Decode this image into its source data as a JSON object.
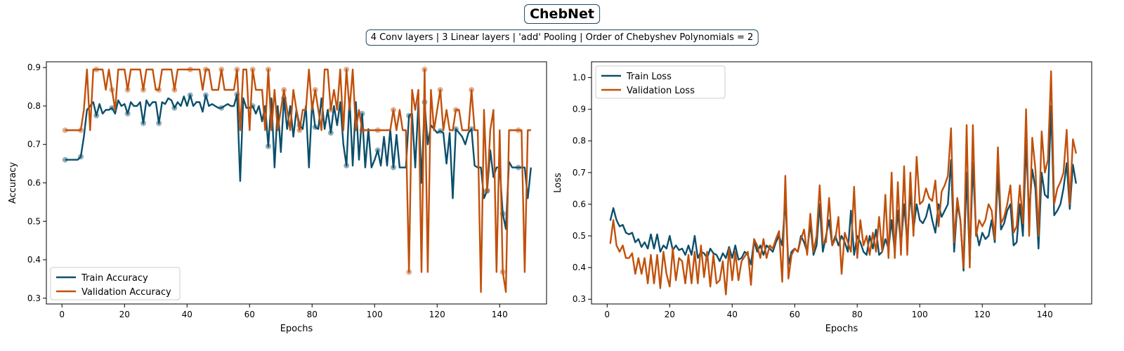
{
  "figure": {
    "title": "ChebNet",
    "subtitle": "4 Conv layers | 3 Linear layers | 'add' Pooling | Order of Chebyshev Polynomials = 2"
  },
  "colors": {
    "train": "#0b4f6c",
    "validation": "#c1500a"
  },
  "chart_data": [
    {
      "type": "line",
      "xlabel": "Epochs",
      "ylabel": "Accuracy",
      "xlim": [
        -5,
        155
      ],
      "ylim": [
        0.285,
        0.915
      ],
      "xticks": [
        0,
        20,
        40,
        60,
        80,
        100,
        120,
        140
      ],
      "yticks": [
        0.3,
        0.4,
        0.5,
        0.6,
        0.7,
        0.8,
        0.9
      ],
      "grid": false,
      "legend_position": "lower-left",
      "markers_every": 5,
      "series": [
        {
          "name": "Train Accuracy",
          "color": "train",
          "x_start": 1,
          "x_step": 1,
          "values": [
            0.66,
            0.66,
            0.66,
            0.66,
            0.66,
            0.668,
            0.72,
            0.79,
            0.8,
            0.81,
            0.775,
            0.805,
            0.78,
            0.79,
            0.79,
            0.795,
            0.78,
            0.815,
            0.8,
            0.805,
            0.78,
            0.81,
            0.8,
            0.8,
            0.81,
            0.755,
            0.815,
            0.8,
            0.81,
            0.81,
            0.755,
            0.81,
            0.805,
            0.82,
            0.815,
            0.795,
            0.81,
            0.8,
            0.825,
            0.8,
            0.828,
            0.8,
            0.81,
            0.81,
            0.785,
            0.828,
            0.8,
            0.805,
            0.8,
            0.795,
            0.795,
            0.8,
            0.805,
            0.8,
            0.8,
            0.83,
            0.605,
            0.82,
            0.795,
            0.795,
            0.8,
            0.78,
            0.8,
            0.76,
            0.8,
            0.695,
            0.82,
            0.64,
            0.8,
            0.68,
            0.82,
            0.74,
            0.8,
            0.72,
            0.79,
            0.75,
            0.74,
            0.8,
            0.64,
            0.81,
            0.745,
            0.74,
            0.82,
            0.74,
            0.79,
            0.73,
            0.8,
            0.75,
            0.81,
            0.7,
            0.645,
            0.82,
            0.645,
            0.81,
            0.66,
            0.78,
            0.64,
            0.74,
            0.64,
            0.66,
            0.685,
            0.645,
            0.72,
            0.645,
            0.74,
            0.64,
            0.725,
            0.64,
            0.64,
            0.64,
            0.775,
            0.78,
            0.64,
            0.81,
            0.6,
            0.81,
            0.7,
            0.75,
            0.74,
            0.73,
            0.735,
            0.73,
            0.65,
            0.73,
            0.56,
            0.74,
            0.73,
            0.72,
            0.7,
            0.73,
            0.74,
            0.645,
            0.64,
            0.64,
            0.56,
            0.58,
            0.685,
            0.615,
            0.64,
            0.64,
            0.52,
            0.48,
            0.655,
            0.64,
            0.64,
            0.64,
            0.64,
            0.64,
            0.56,
            0.64
          ]
        },
        {
          "name": "Validation Accuracy",
          "color": "validation",
          "x_start": 1,
          "x_step": 1,
          "values": [
            0.737,
            0.737,
            0.737,
            0.737,
            0.737,
            0.737,
            0.79,
            0.895,
            0.737,
            0.895,
            0.895,
            0.895,
            0.895,
            0.842,
            0.895,
            0.842,
            0.79,
            0.895,
            0.895,
            0.895,
            0.842,
            0.895,
            0.895,
            0.895,
            0.895,
            0.842,
            0.895,
            0.895,
            0.895,
            0.842,
            0.842,
            0.895,
            0.895,
            0.895,
            0.895,
            0.842,
            0.895,
            0.895,
            0.895,
            0.895,
            0.895,
            0.895,
            0.895,
            0.895,
            0.842,
            0.895,
            0.895,
            0.842,
            0.842,
            0.842,
            0.895,
            0.842,
            0.842,
            0.842,
            0.842,
            0.895,
            0.737,
            0.895,
            0.895,
            0.737,
            0.895,
            0.842,
            0.842,
            0.842,
            0.737,
            0.895,
            0.737,
            0.842,
            0.737,
            0.79,
            0.842,
            0.79,
            0.737,
            0.842,
            0.79,
            0.737,
            0.79,
            0.79,
            0.895,
            0.79,
            0.842,
            0.79,
            0.737,
            0.895,
            0.895,
            0.79,
            0.842,
            0.79,
            0.895,
            0.737,
            0.895,
            0.79,
            0.895,
            0.737,
            0.79,
            0.737,
            0.737,
            0.737,
            0.737,
            0.737,
            0.737,
            0.737,
            0.737,
            0.737,
            0.737,
            0.79,
            0.737,
            0.79,
            0.737,
            0.737,
            0.368,
            0.842,
            0.79,
            0.842,
            0.368,
            0.895,
            0.368,
            0.842,
            0.737,
            0.79,
            0.842,
            0.737,
            0.79,
            0.737,
            0.737,
            0.79,
            0.79,
            0.737,
            0.737,
            0.737,
            0.842,
            0.737,
            0.737,
            0.316,
            0.79,
            0.579,
            0.737,
            0.79,
            0.368,
            0.737,
            0.368,
            0.316,
            0.737,
            0.737,
            0.737,
            0.737,
            0.737,
            0.368,
            0.737,
            0.737
          ]
        }
      ]
    },
    {
      "type": "line",
      "xlabel": "Epochs",
      "ylabel": "Loss",
      "xlim": [
        -5,
        155
      ],
      "ylim": [
        0.285,
        1.05
      ],
      "xticks": [
        0,
        20,
        40,
        60,
        80,
        100,
        120,
        140
      ],
      "yticks": [
        0.3,
        0.4,
        0.5,
        0.6,
        0.7,
        0.8,
        0.9,
        1.0
      ],
      "grid": false,
      "legend_position": "upper-left",
      "series": [
        {
          "name": "Train Loss",
          "color": "train",
          "x_start": 1,
          "x_step": 1,
          "values": [
            0.548,
            0.588,
            0.55,
            0.53,
            0.535,
            0.51,
            0.505,
            0.51,
            0.48,
            0.49,
            0.465,
            0.48,
            0.46,
            0.505,
            0.46,
            0.505,
            0.45,
            0.47,
            0.46,
            0.5,
            0.455,
            0.47,
            0.455,
            0.46,
            0.44,
            0.47,
            0.44,
            0.5,
            0.43,
            0.45,
            0.445,
            0.43,
            0.46,
            0.445,
            0.44,
            0.42,
            0.445,
            0.43,
            0.465,
            0.43,
            0.47,
            0.425,
            0.43,
            0.45,
            0.44,
            0.41,
            0.485,
            0.45,
            0.47,
            0.44,
            0.47,
            0.46,
            0.45,
            0.48,
            0.5,
            0.47,
            0.615,
            0.41,
            0.45,
            0.46,
            0.45,
            0.5,
            0.48,
            0.45,
            0.54,
            0.44,
            0.47,
            0.6,
            0.45,
            0.5,
            0.55,
            0.47,
            0.5,
            0.47,
            0.5,
            0.48,
            0.45,
            0.58,
            0.44,
            0.5,
            0.48,
            0.45,
            0.44,
            0.5,
            0.46,
            0.52,
            0.44,
            0.45,
            0.49,
            0.46,
            0.55,
            0.45,
            0.58,
            0.47,
            0.6,
            0.48,
            0.64,
            0.52,
            0.6,
            0.55,
            0.54,
            0.56,
            0.6,
            0.55,
            0.51,
            0.6,
            0.56,
            0.58,
            0.6,
            0.74,
            0.45,
            0.6,
            0.55,
            0.39,
            0.7,
            0.42,
            0.73,
            0.52,
            0.47,
            0.51,
            0.49,
            0.5,
            0.55,
            0.48,
            0.7,
            0.52,
            0.54,
            0.58,
            0.6,
            0.47,
            0.48,
            0.6,
            0.5,
            0.79,
            0.57,
            0.71,
            0.65,
            0.46,
            0.7,
            0.63,
            0.62,
            0.91,
            0.565,
            0.58,
            0.6,
            0.65,
            0.73,
            0.585,
            0.725,
            0.665
          ]
        },
        {
          "name": "Validation Loss",
          "color": "validation",
          "x_start": 1,
          "x_step": 1,
          "values": [
            0.475,
            0.55,
            0.47,
            0.45,
            0.47,
            0.43,
            0.43,
            0.445,
            0.38,
            0.43,
            0.38,
            0.43,
            0.35,
            0.44,
            0.35,
            0.44,
            0.335,
            0.45,
            0.38,
            0.34,
            0.46,
            0.36,
            0.43,
            0.42,
            0.35,
            0.44,
            0.35,
            0.45,
            0.35,
            0.47,
            0.37,
            0.45,
            0.34,
            0.44,
            0.35,
            0.36,
            0.42,
            0.315,
            0.46,
            0.36,
            0.45,
            0.36,
            0.42,
            0.435,
            0.45,
            0.345,
            0.49,
            0.47,
            0.43,
            0.49,
            0.43,
            0.47,
            0.46,
            0.49,
            0.515,
            0.355,
            0.69,
            0.365,
            0.44,
            0.46,
            0.45,
            0.49,
            0.52,
            0.44,
            0.57,
            0.45,
            0.5,
            0.66,
            0.48,
            0.48,
            0.62,
            0.47,
            0.49,
            0.56,
            0.38,
            0.51,
            0.48,
            0.45,
            0.655,
            0.43,
            0.55,
            0.47,
            0.5,
            0.44,
            0.51,
            0.45,
            0.56,
            0.45,
            0.63,
            0.43,
            0.7,
            0.43,
            0.67,
            0.44,
            0.72,
            0.44,
            0.7,
            0.5,
            0.75,
            0.6,
            0.61,
            0.65,
            0.62,
            0.61,
            0.675,
            0.53,
            0.64,
            0.66,
            0.69,
            0.84,
            0.48,
            0.62,
            0.55,
            0.4,
            0.85,
            0.4,
            0.85,
            0.5,
            0.55,
            0.53,
            0.55,
            0.6,
            0.58,
            0.49,
            0.78,
            0.54,
            0.56,
            0.6,
            0.66,
            0.51,
            0.53,
            0.66,
            0.54,
            0.9,
            0.5,
            0.81,
            0.71,
            0.5,
            0.83,
            0.7,
            0.74,
            1.02,
            0.6,
            0.65,
            0.67,
            0.7,
            0.835,
            0.6,
            0.805,
            0.76
          ]
        }
      ]
    }
  ]
}
